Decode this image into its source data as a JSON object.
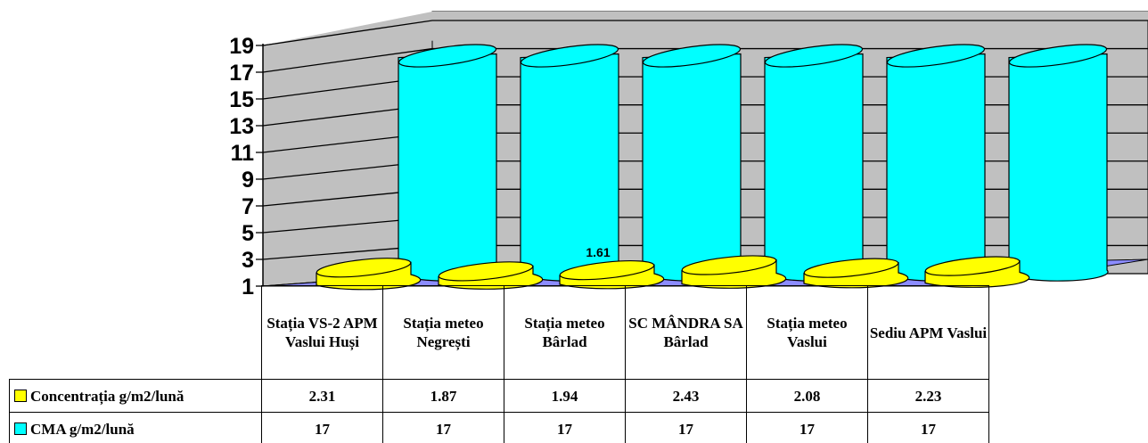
{
  "chart_data": {
    "type": "bar",
    "style": "3d-cylinder",
    "categories": [
      "Stația VS-2 APM Vaslui Huși",
      "Stația meteo Negrești",
      "Stația meteo Bârlad",
      "SC MÂNDRA SA Bârlad",
      "Stația meteo Vaslui",
      "Sediu APM Vaslui"
    ],
    "series": [
      {
        "name": "Concentrația g/m2/lună",
        "color": "#FFFF00",
        "values": [
          2.31,
          1.87,
          1.94,
          2.43,
          2.08,
          2.23
        ]
      },
      {
        "name": "CMA g/m2/lună",
        "color": "#00FFFF",
        "values": [
          17,
          17,
          17,
          17,
          17,
          17
        ]
      }
    ],
    "y_ticks": [
      "1",
      "3",
      "5",
      "7",
      "9",
      "11",
      "13",
      "15",
      "17",
      "19"
    ],
    "ylim": [
      1,
      19
    ],
    "annotation": "1.61",
    "grid": true,
    "legend": "data-table",
    "title": "",
    "xlabel": "",
    "ylabel": ""
  }
}
